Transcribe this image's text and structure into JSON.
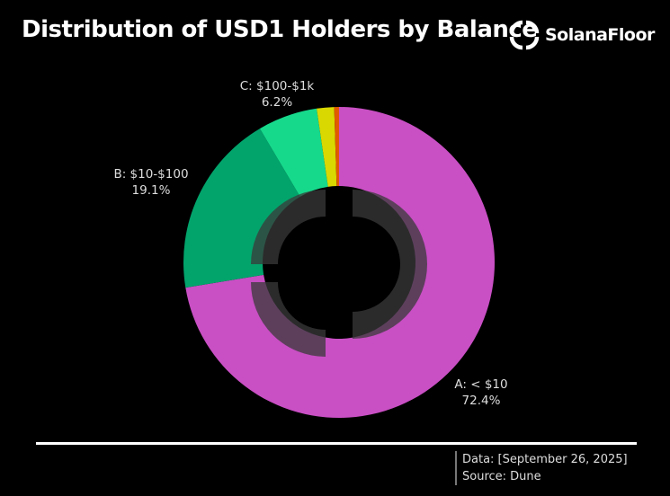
{
  "header": {
    "title": "Distribution of USD1 Holders by Balance",
    "brand": "SolanaFloor"
  },
  "footer": {
    "data_line": "Data: [September 26, 2025]",
    "source_line": "Source: Dune"
  },
  "chart_data": {
    "type": "pie",
    "donut": true,
    "title": "Distribution of USD1 Holders by Balance",
    "categories": [
      "A: < $10",
      "B: $10-$100",
      "C: $100-$1k",
      "",
      ""
    ],
    "values": [
      72.4,
      19.1,
      6.2,
      1.8,
      0.5
    ],
    "labels": [
      "72.4%",
      "19.1%",
      "6.2%",
      "",
      ""
    ],
    "colors": [
      "#c94fc4",
      "#02a46c",
      "#16d98c",
      "#d9d800",
      "#e05a00"
    ],
    "start": "top",
    "direction": "clockwise"
  }
}
